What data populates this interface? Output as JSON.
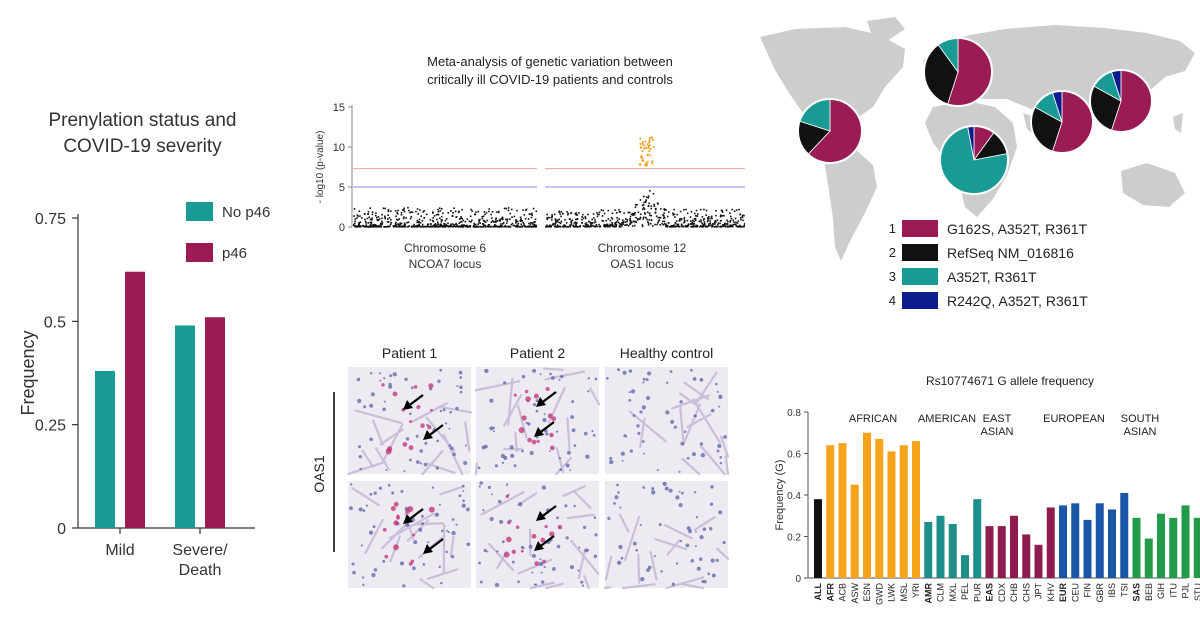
{
  "colors": {
    "teal": "#1a9a95",
    "maroon": "#9b1b55",
    "black": "#111111",
    "navy": "#0d1b8f",
    "orange": "#f5a020",
    "afr_orange": "#f7a31c",
    "amr_teal": "#1d8e8a",
    "eas_maroon": "#8e1c4f",
    "eur_blue": "#1b55a6",
    "sas_green": "#229a4a",
    "manhattan_line_red": "#e8a0a0",
    "manhattan_line_blue": "#8a8ad8"
  },
  "prenylation": {
    "title_line1": "Prenylation status and",
    "title_line2": "COVID-19 severity",
    "chart_data": {
      "type": "bar",
      "categories": [
        "Mild",
        "Severe/Death"
      ],
      "category_lines": [
        [
          "Mild"
        ],
        [
          "Severe/",
          "Death"
        ]
      ],
      "series": [
        {
          "name": "No p46",
          "values": [
            0.38,
            0.49
          ]
        },
        {
          "name": "p46",
          "values": [
            0.62,
            0.51
          ]
        }
      ],
      "ylabel": "Frequency",
      "ylim": [
        0,
        0.75
      ],
      "yticks": [
        "0",
        "0.25",
        "0.5",
        "0.75"
      ],
      "legend": [
        "No p46",
        "p46"
      ]
    }
  },
  "manhattan": {
    "title_line1": "Meta-analysis of genetic variation between",
    "title_line2": "critically ill COVID-19 patients and controls",
    "chart_data": {
      "type": "scatter",
      "ylabel": "- log10 (p-value)",
      "ylim": [
        0,
        15
      ],
      "yticks": [
        "0",
        "5",
        "10",
        "15"
      ],
      "thresholds": [
        7.3,
        5
      ],
      "panels": [
        {
          "label_line1": "Chromosome 6",
          "label_line2": "NCOA7 locus"
        },
        {
          "label_line1": "Chromosome 12",
          "label_line2": "OAS1 locus"
        }
      ],
      "peak_max": 11.5
    }
  },
  "histology": {
    "columns": [
      "Patient 1",
      "Patient 2",
      "Healthy control"
    ],
    "row_label": "OAS1"
  },
  "world_map": {
    "legend": [
      {
        "num": "1",
        "label": "G162S, A352T, R361T"
      },
      {
        "num": "2",
        "label": "RefSeq NM_016816"
      },
      {
        "num": "3",
        "label": "A352T, R361T"
      },
      {
        "num": "4",
        "label": "R242Q, A352T, R361T"
      }
    ],
    "chart_data": {
      "type": "pie",
      "haplotypes": [
        "G162S, A352T, R361T",
        "RefSeq NM_016816",
        "A352T, R361T",
        "R242Q, A352T, R361T"
      ],
      "regions": [
        {
          "region": "Americas",
          "values": [
            0.62,
            0.18,
            0.2,
            0.0
          ]
        },
        {
          "region": "Europe",
          "values": [
            0.55,
            0.35,
            0.1,
            0.0
          ]
        },
        {
          "region": "Africa",
          "values": [
            0.1,
            0.12,
            0.75,
            0.03
          ]
        },
        {
          "region": "South Asia",
          "values": [
            0.55,
            0.28,
            0.12,
            0.05
          ]
        },
        {
          "region": "East Asia",
          "values": [
            0.55,
            0.28,
            0.12,
            0.05
          ]
        }
      ]
    }
  },
  "allele": {
    "title": "Rs10774671 G allele frequency",
    "chart_data": {
      "type": "bar",
      "ylabel": "Frequency (G)",
      "ylim": [
        0,
        0.8
      ],
      "yticks": [
        "0",
        "0.2",
        "0.4",
        "0.6",
        "0.8"
      ],
      "groups": [
        {
          "name": "ALL",
          "label_lines": [],
          "color_key": "black",
          "pops": [
            "ALL"
          ],
          "values": [
            0.38
          ]
        },
        {
          "name": "AFRICAN",
          "label_lines": [
            "AFRICAN"
          ],
          "color_key": "afr_orange",
          "pops": [
            "AFR",
            "ACB",
            "ASW",
            "ESN",
            "GWD",
            "LWK",
            "MSL",
            "YRI"
          ],
          "values": [
            0.64,
            0.65,
            0.45,
            0.7,
            0.67,
            0.61,
            0.64,
            0.66
          ]
        },
        {
          "name": "AMERICAN",
          "label_lines": [
            "AMERICAN"
          ],
          "color_key": "amr_teal",
          "pops": [
            "AMR",
            "CLM",
            "MXL",
            "PEL",
            "PUR"
          ],
          "values": [
            0.27,
            0.3,
            0.26,
            0.11,
            0.38
          ]
        },
        {
          "name": "EAST ASIAN",
          "label_lines": [
            "EAST",
            "ASIAN"
          ],
          "color_key": "eas_maroon",
          "pops": [
            "EAS",
            "CDX",
            "CHB",
            "CHS",
            "JPT",
            "KHV"
          ],
          "values": [
            0.25,
            0.25,
            0.3,
            0.21,
            0.16,
            0.34
          ]
        },
        {
          "name": "EUROPEAN",
          "label_lines": [
            "EUROPEAN"
          ],
          "color_key": "eur_blue",
          "pops": [
            "EUR",
            "CEU",
            "FIN",
            "GBR",
            "IBS",
            "TSI"
          ],
          "values": [
            0.35,
            0.36,
            0.28,
            0.36,
            0.33,
            0.41
          ]
        },
        {
          "name": "SOUTH ASIAN",
          "label_lines": [
            "SOUTH",
            "ASIAN"
          ],
          "color_key": "sas_green",
          "pops": [
            "SAS",
            "BEB",
            "GIH",
            "ITU",
            "PJL",
            "STU"
          ],
          "values": [
            0.29,
            0.19,
            0.31,
            0.29,
            0.35,
            0.29
          ]
        }
      ],
      "bold_pops": [
        "ALL",
        "AFR",
        "AMR",
        "EAS",
        "EUR",
        "SAS"
      ]
    }
  }
}
